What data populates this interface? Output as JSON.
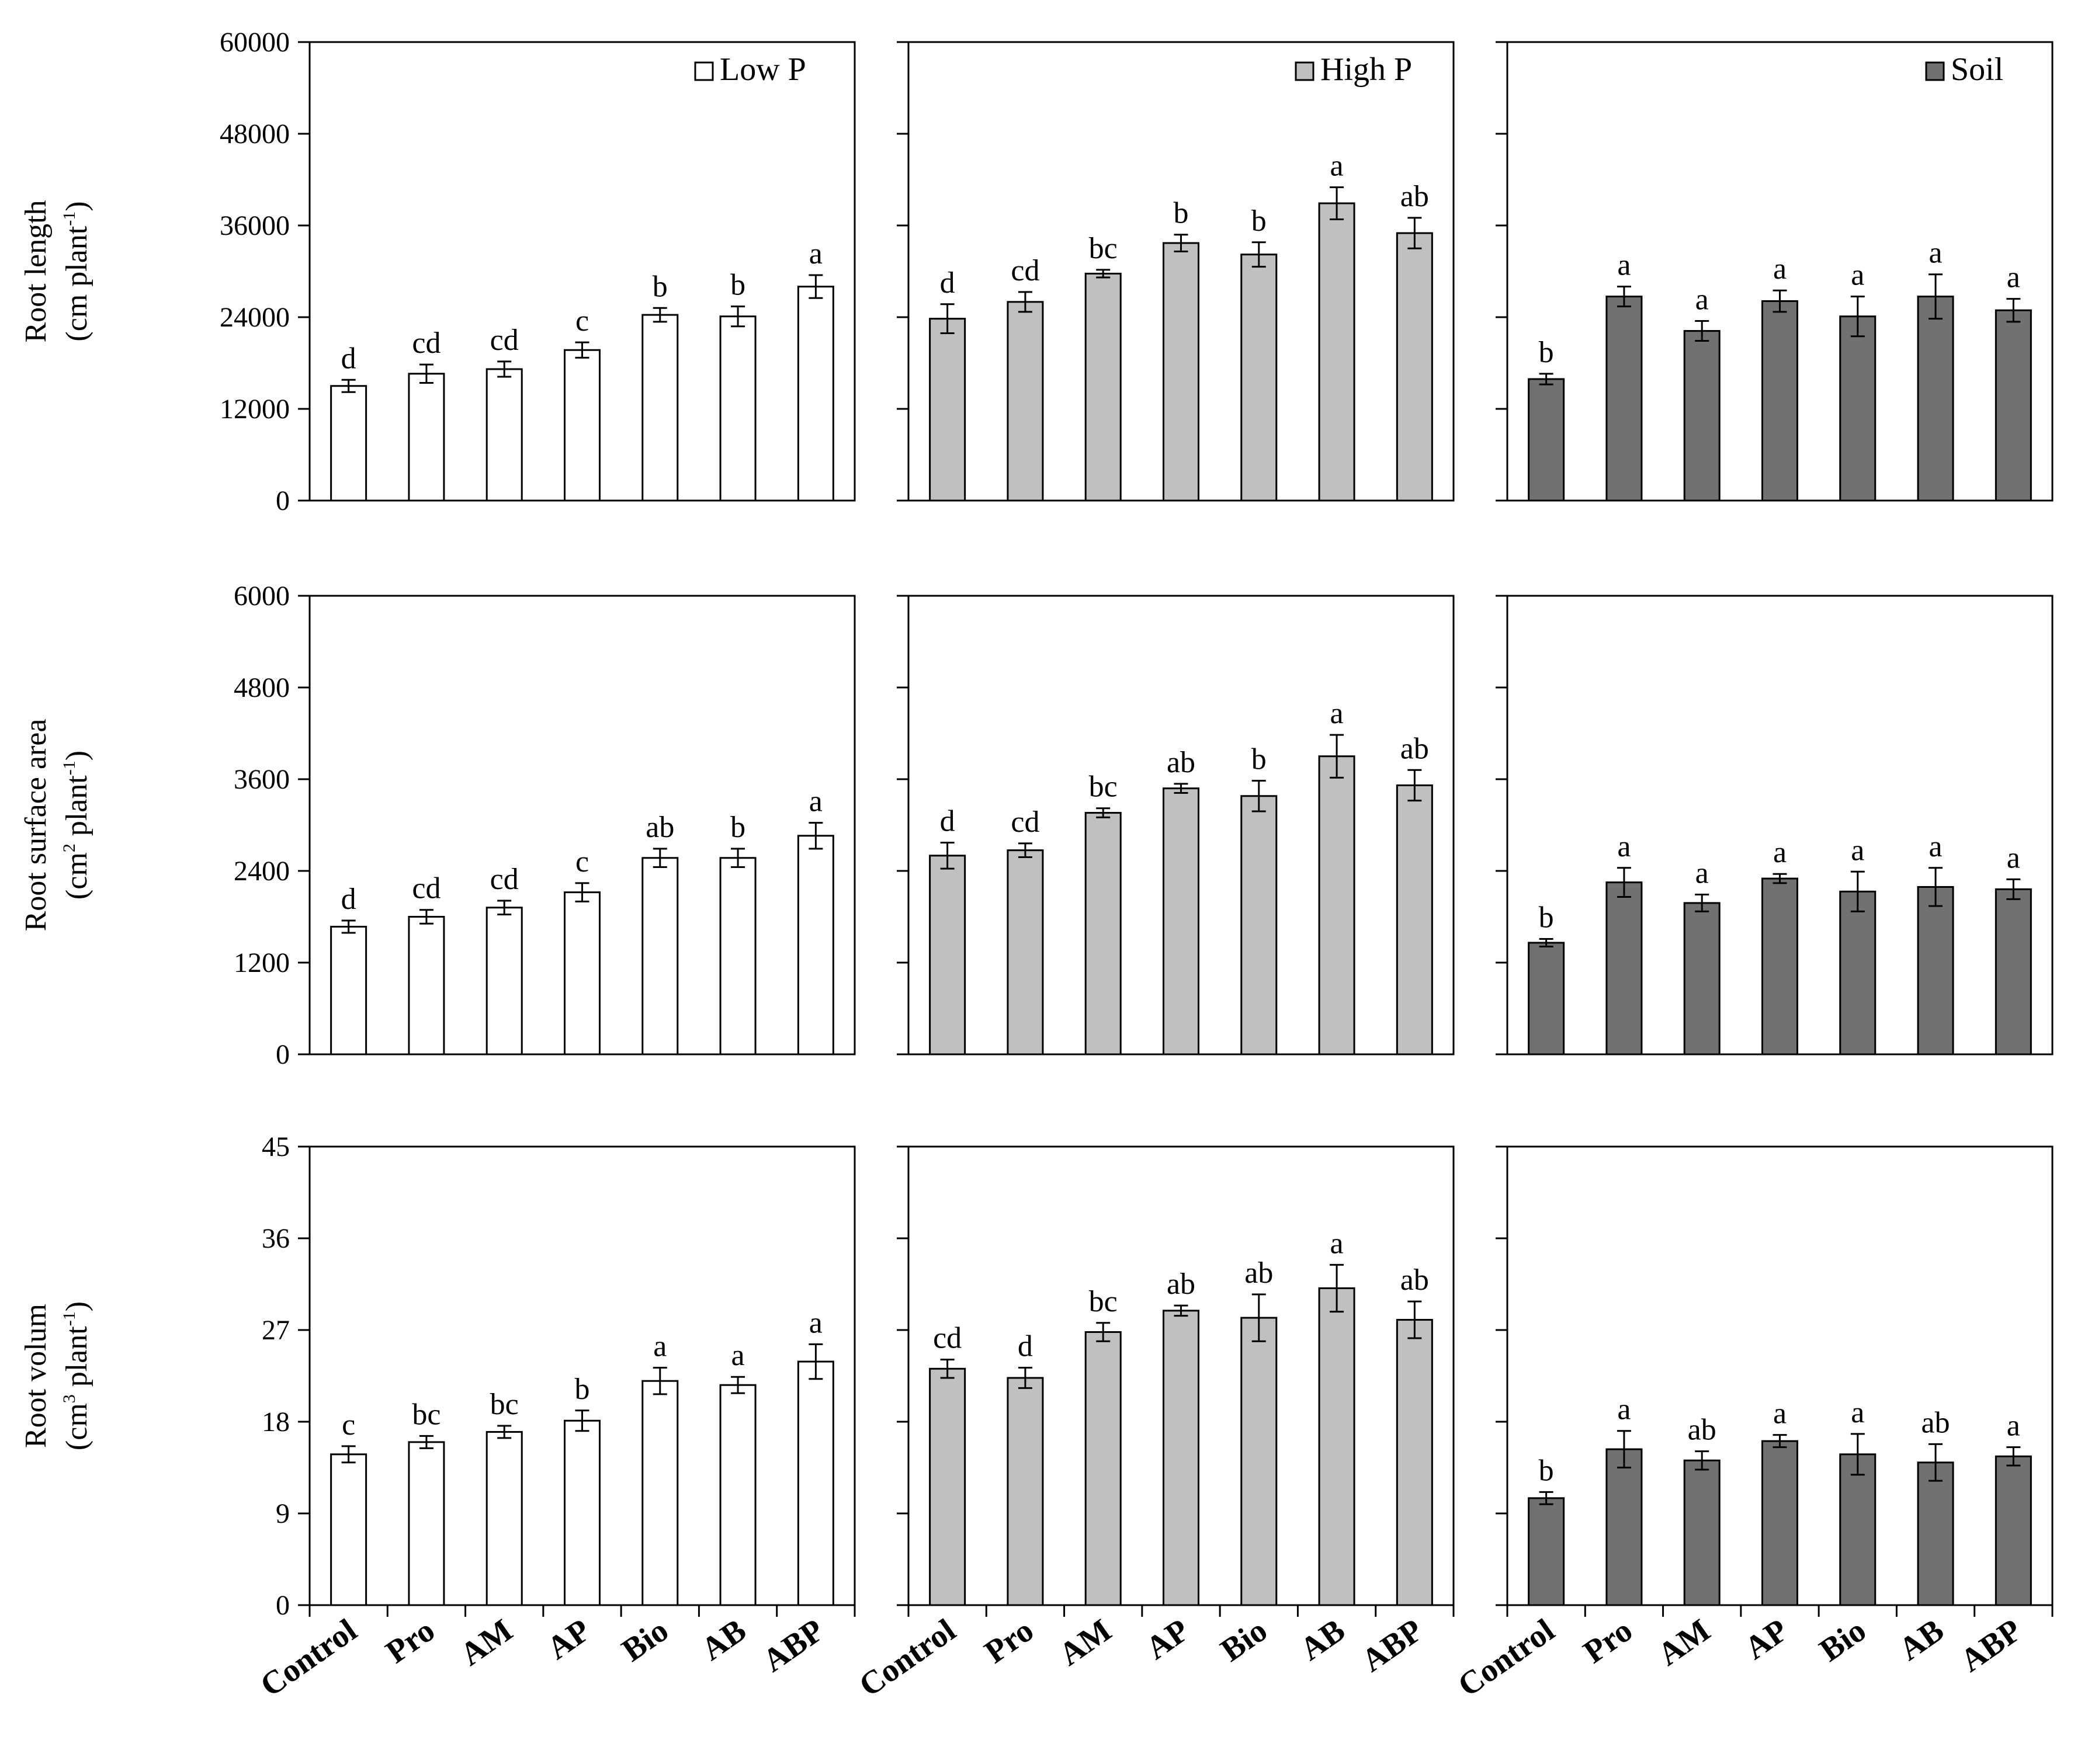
{
  "colors": {
    "low_p": "#ffffff",
    "high_p": "#c0c0c0",
    "soil": "#737070",
    "stroke": "#000000"
  },
  "panel_columns": [
    {
      "legend": "Low P",
      "color_key": "low_p"
    },
    {
      "legend": "High P",
      "color_key": "high_p"
    },
    {
      "legend": "Soil",
      "color_key": "soil"
    }
  ],
  "rows": [
    {
      "title_line1": "Root length",
      "title_line2_pre": "(cm plant",
      "title_sup": "-1",
      "title_line2_post": ")",
      "title_sup2": "",
      "title_line2_mid": ""
    },
    {
      "title_line1": "Root surface area",
      "title_line2_pre": "(cm",
      "title_sup2": "2",
      "title_line2_mid": " plant",
      "title_sup": "-1",
      "title_line2_post": ")"
    },
    {
      "title_line1": "Root volum",
      "title_line2_pre": "(cm",
      "title_sup2": "3",
      "title_line2_mid": " plant",
      "title_sup": "-1",
      "title_line2_post": ")"
    }
  ],
  "chart_data": [
    {
      "type": "bar",
      "title": "",
      "legend": "Low P",
      "row": 0,
      "col": 0,
      "ylabel": "Root length (cm plant-1)",
      "categories": [
        "Control",
        "Pro",
        "AM",
        "AP",
        "Bio",
        "AB",
        "ABP"
      ],
      "values": [
        15000,
        16600,
        17200,
        19700,
        24300,
        24100,
        28000
      ],
      "errors": [
        800,
        1200,
        1000,
        1000,
        900,
        1300,
        1500
      ],
      "letters": [
        "d",
        "cd",
        "cd",
        "c",
        "b",
        "b",
        "a"
      ],
      "ylim": [
        0,
        60000
      ],
      "yticks": [
        "0",
        "12000",
        "24000",
        "36000",
        "48000",
        "60000"
      ]
    },
    {
      "type": "bar",
      "title": "",
      "legend": "High P",
      "row": 0,
      "col": 1,
      "ylabel": "Root length (cm plant-1)",
      "categories": [
        "Control",
        "Pro",
        "AM",
        "AP",
        "Bio",
        "AB",
        "ABP"
      ],
      "values": [
        23800,
        26000,
        29700,
        33700,
        32200,
        38900,
        35000
      ],
      "errors": [
        1900,
        1300,
        500,
        1100,
        1600,
        2100,
        2000
      ],
      "letters": [
        "d",
        "cd",
        "bc",
        "b",
        "b",
        "a",
        "ab"
      ],
      "ylim": [
        0,
        60000
      ],
      "yticks": []
    },
    {
      "type": "bar",
      "title": "",
      "legend": "Soil",
      "row": 0,
      "col": 2,
      "ylabel": "Root length (cm plant-1)",
      "categories": [
        "Control",
        "Pro",
        "AM",
        "AP",
        "Bio",
        "AB",
        "ABP"
      ],
      "values": [
        15900,
        26700,
        22200,
        26100,
        24100,
        26700,
        24900
      ],
      "errors": [
        700,
        1300,
        1300,
        1400,
        2600,
        2900,
        1500
      ],
      "letters": [
        "b",
        "a",
        "a",
        "a",
        "a",
        "a",
        "a"
      ],
      "ylim": [
        0,
        60000
      ],
      "yticks": []
    },
    {
      "type": "bar",
      "title": "",
      "legend": "",
      "row": 1,
      "col": 0,
      "ylabel": "Root surface area (cm2 plant-1)",
      "categories": [
        "Control",
        "Pro",
        "AM",
        "AP",
        "Bio",
        "AB",
        "ABP"
      ],
      "values": [
        1670,
        1800,
        1920,
        2120,
        2570,
        2570,
        2860
      ],
      "errors": [
        80,
        90,
        90,
        120,
        120,
        120,
        170
      ],
      "letters": [
        "d",
        "cd",
        "cd",
        "c",
        "ab",
        "b",
        "a"
      ],
      "ylim": [
        0,
        6000
      ],
      "yticks": [
        "0",
        "1200",
        "2400",
        "3600",
        "4800",
        "6000"
      ]
    },
    {
      "type": "bar",
      "title": "",
      "legend": "",
      "row": 1,
      "col": 1,
      "ylabel": "Root surface area (cm2 plant-1)",
      "categories": [
        "Control",
        "Pro",
        "AM",
        "AP",
        "Bio",
        "AB",
        "ABP"
      ],
      "values": [
        2600,
        2670,
        3160,
        3480,
        3380,
        3900,
        3520
      ],
      "errors": [
        170,
        90,
        60,
        60,
        200,
        280,
        200
      ],
      "letters": [
        "d",
        "cd",
        "bc",
        "ab",
        "b",
        "a",
        "ab"
      ],
      "ylim": [
        0,
        6000
      ],
      "yticks": []
    },
    {
      "type": "bar",
      "title": "",
      "legend": "",
      "row": 1,
      "col": 2,
      "ylabel": "Root surface area (cm2 plant-1)",
      "categories": [
        "Control",
        "Pro",
        "AM",
        "AP",
        "Bio",
        "AB",
        "ABP"
      ],
      "values": [
        1460,
        2250,
        1980,
        2300,
        2130,
        2190,
        2160
      ],
      "errors": [
        50,
        190,
        110,
        60,
        260,
        250,
        130
      ],
      "letters": [
        "b",
        "a",
        "a",
        "a",
        "a",
        "a",
        "a"
      ],
      "ylim": [
        0,
        6000
      ],
      "yticks": []
    },
    {
      "type": "bar",
      "title": "",
      "legend": "",
      "row": 2,
      "col": 0,
      "ylabel": "Root volum (cm3 plant-1)",
      "categories": [
        "Control",
        "Pro",
        "AM",
        "AP",
        "Bio",
        "AB",
        "ABP"
      ],
      "values": [
        14.8,
        16.0,
        17.0,
        18.1,
        22.0,
        21.6,
        23.9
      ],
      "errors": [
        0.8,
        0.6,
        0.6,
        1.0,
        1.3,
        0.8,
        1.7
      ],
      "letters": [
        "c",
        "bc",
        "bc",
        "b",
        "a",
        "a",
        "a"
      ],
      "ylim": [
        0,
        45
      ],
      "yticks": [
        "0",
        "9",
        "18",
        "27",
        "36",
        "45"
      ]
    },
    {
      "type": "bar",
      "title": "",
      "legend": "",
      "row": 2,
      "col": 1,
      "ylabel": "Root volum (cm3 plant-1)",
      "categories": [
        "Control",
        "Pro",
        "AM",
        "AP",
        "Bio",
        "AB",
        "ABP"
      ],
      "values": [
        23.2,
        22.3,
        26.8,
        28.9,
        28.2,
        31.1,
        28.0
      ],
      "errors": [
        0.9,
        1.0,
        0.9,
        0.5,
        2.3,
        2.3,
        1.8
      ],
      "letters": [
        "cd",
        "d",
        "bc",
        "ab",
        "ab",
        "a",
        "ab"
      ],
      "ylim": [
        0,
        45
      ],
      "yticks": []
    },
    {
      "type": "bar",
      "title": "",
      "legend": "",
      "row": 2,
      "col": 2,
      "ylabel": "Root volum (cm3 plant-1)",
      "categories": [
        "Control",
        "Pro",
        "AM",
        "AP",
        "Bio",
        "AB",
        "ABP"
      ],
      "values": [
        10.5,
        15.3,
        14.2,
        16.1,
        14.8,
        14.0,
        14.6
      ],
      "errors": [
        0.6,
        1.8,
        0.9,
        0.6,
        2.0,
        1.8,
        0.9
      ],
      "letters": [
        "b",
        "a",
        "ab",
        "a",
        "a",
        "ab",
        "a"
      ],
      "ylim": [
        0,
        45
      ],
      "yticks": []
    }
  ]
}
